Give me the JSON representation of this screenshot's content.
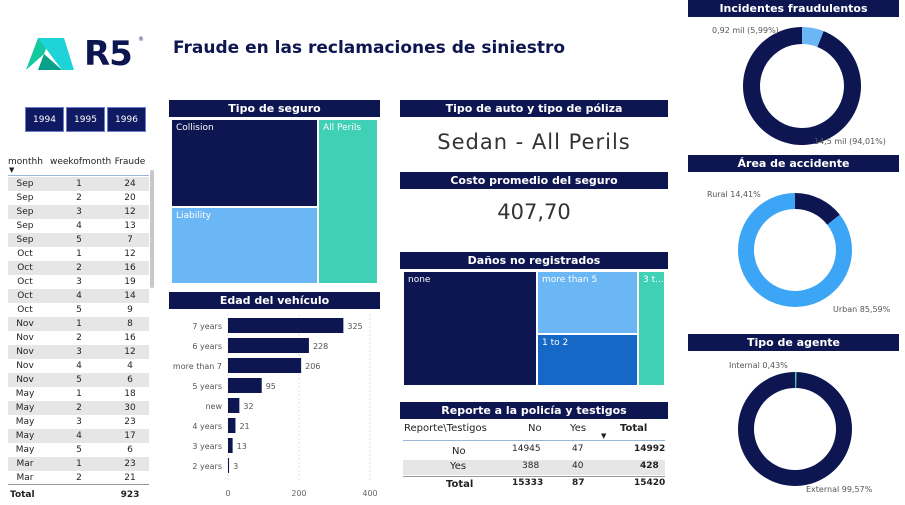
{
  "header": {
    "title": "Fraude en las reclamaciones de siniestro",
    "logo_text": "R5"
  },
  "years": [
    "1994",
    "1995",
    "1996"
  ],
  "month_table": {
    "headers": [
      "monthh",
      "weekofmonth",
      "Fraude"
    ],
    "rows": [
      [
        "Sep",
        "1",
        "24"
      ],
      [
        "Sep",
        "2",
        "20"
      ],
      [
        "Sep",
        "3",
        "12"
      ],
      [
        "Sep",
        "4",
        "13"
      ],
      [
        "Sep",
        "5",
        "7"
      ],
      [
        "Oct",
        "1",
        "12"
      ],
      [
        "Oct",
        "2",
        "16"
      ],
      [
        "Oct",
        "3",
        "19"
      ],
      [
        "Oct",
        "4",
        "14"
      ],
      [
        "Oct",
        "5",
        "9"
      ],
      [
        "Nov",
        "1",
        "8"
      ],
      [
        "Nov",
        "2",
        "16"
      ],
      [
        "Nov",
        "3",
        "12"
      ],
      [
        "Nov",
        "4",
        "4"
      ],
      [
        "Nov",
        "5",
        "6"
      ],
      [
        "May",
        "1",
        "18"
      ],
      [
        "May",
        "2",
        "30"
      ],
      [
        "May",
        "3",
        "23"
      ],
      [
        "May",
        "4",
        "17"
      ],
      [
        "May",
        "5",
        "6"
      ],
      [
        "Mar",
        "1",
        "23"
      ],
      [
        "Mar",
        "2",
        "21"
      ]
    ],
    "total_label": "Total",
    "total_value": "923"
  },
  "tipo_seguro": {
    "title": "Tipo de seguro",
    "tiles": {
      "collision": "Collision",
      "liability": "Liability",
      "all_perils": "All Perils"
    }
  },
  "tipo_auto": {
    "title": "Tipo de auto y tipo de póliza",
    "value": "Sedan - All Perils"
  },
  "costo": {
    "title": "Costo promedio del seguro",
    "value": "407,70"
  },
  "danos": {
    "title": "Daños no registrados",
    "tiles": {
      "none": "none",
      "more5": "more than 5",
      "one_two": "1 to 2",
      "three": "3 t..."
    }
  },
  "reporte": {
    "title": "Reporte a la policía y testigos",
    "headers": [
      "Reporte\\Testigos",
      "No",
      "Yes",
      "Total"
    ],
    "rows": [
      [
        "No",
        "14945",
        "47",
        "14992"
      ],
      [
        "Yes",
        "388",
        "40",
        "428"
      ]
    ],
    "total": [
      "Total",
      "15333",
      "87",
      "15420"
    ]
  },
  "incidentes": {
    "title": "Incidentes fraudulentos",
    "label_small": "0,92 mil (5,99%)",
    "label_large": "14,5 mil (94,01%)"
  },
  "area": {
    "title": "Área de accidente",
    "label_small": "Rural 14,41%",
    "label_large": "Urban 85,59%"
  },
  "agente": {
    "title": "Tipo de agente",
    "label_small": "Internal 0,43%",
    "label_large": "External 99,57%"
  },
  "colors": {
    "navy": "#0e1652",
    "teal": "#3fd0b5",
    "lightblue": "#6bb6f5",
    "midblue": "#1668c6",
    "brightblue": "#3da5f5"
  },
  "chart_data": [
    {
      "type": "bar",
      "title": "Edad del vehículo",
      "orientation": "horizontal",
      "categories": [
        "7 years",
        "6 years",
        "more than 7",
        "5 years",
        "new",
        "4 years",
        "3 years",
        "2 years"
      ],
      "values": [
        325,
        228,
        206,
        95,
        32,
        21,
        13,
        3
      ],
      "xticks": [
        "0",
        "200",
        "400"
      ],
      "xlim": [
        0,
        400
      ],
      "color": "#0e1652"
    },
    {
      "type": "pie",
      "title": "Incidentes fraudulentos",
      "values": [
        5.99,
        94.01
      ],
      "colors": [
        "#6bb6f5",
        "#0e1652"
      ]
    },
    {
      "type": "pie",
      "title": "Área de accidente",
      "values": [
        14.41,
        85.59
      ],
      "colors": [
        "#0e1652",
        "#3da5f5"
      ]
    },
    {
      "type": "pie",
      "title": "Tipo de agente",
      "values": [
        0.43,
        99.57
      ],
      "colors": [
        "#3fd0b5",
        "#0e1652"
      ]
    }
  ]
}
